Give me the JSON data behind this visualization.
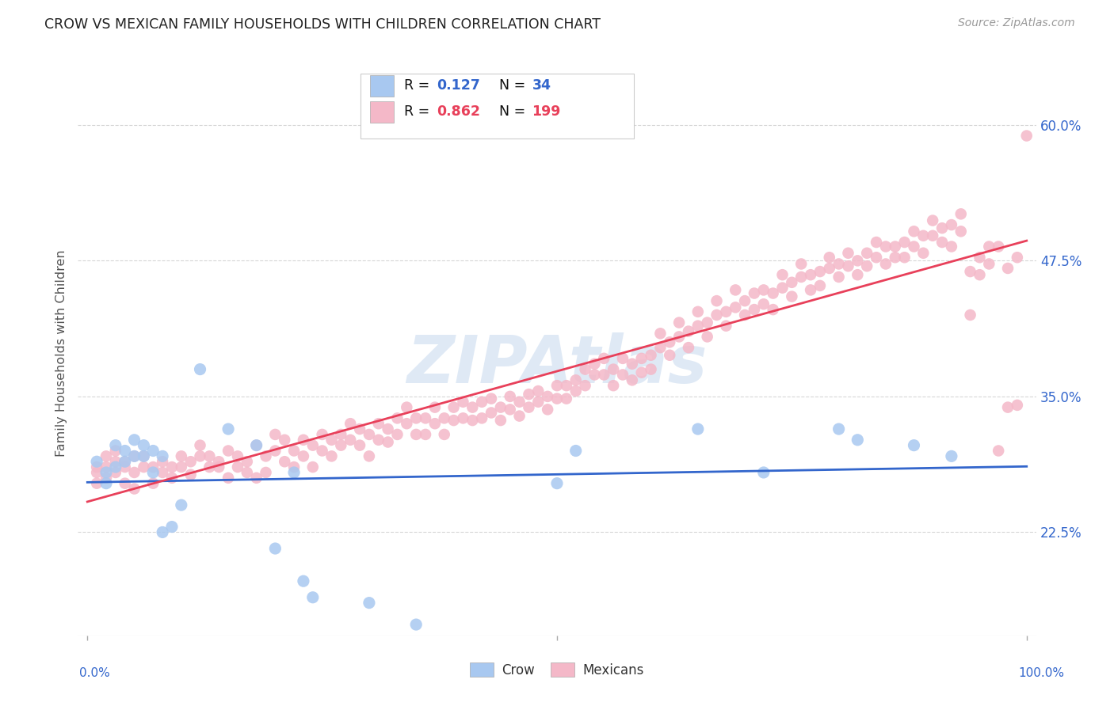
{
  "title": "CROW VS MEXICAN FAMILY HOUSEHOLDS WITH CHILDREN CORRELATION CHART",
  "source": "Source: ZipAtlas.com",
  "ylabel": "Family Households with Children",
  "ytick_labels": [
    "22.5%",
    "35.0%",
    "47.5%",
    "60.0%"
  ],
  "ytick_values": [
    0.225,
    0.35,
    0.475,
    0.6
  ],
  "xlim": [
    -0.01,
    1.01
  ],
  "ylim": [
    0.13,
    0.65
  ],
  "crow_R": "0.127",
  "crow_N": "34",
  "mexicans_R": "0.862",
  "mexicans_N": "199",
  "crow_color": "#a8c8f0",
  "crow_line_color": "#3366cc",
  "mexicans_color": "#f4b8c8",
  "mexicans_line_color": "#e8405a",
  "background_color": "#ffffff",
  "grid_color": "#cccccc",
  "watermark": "ZIPAtlas",
  "legend_box_color": "#dddddd",
  "crow_scatter": [
    [
      0.01,
      0.29
    ],
    [
      0.02,
      0.28
    ],
    [
      0.02,
      0.27
    ],
    [
      0.03,
      0.305
    ],
    [
      0.03,
      0.285
    ],
    [
      0.04,
      0.3
    ],
    [
      0.04,
      0.29
    ],
    [
      0.05,
      0.31
    ],
    [
      0.05,
      0.295
    ],
    [
      0.06,
      0.305
    ],
    [
      0.06,
      0.295
    ],
    [
      0.07,
      0.3
    ],
    [
      0.07,
      0.28
    ],
    [
      0.08,
      0.295
    ],
    [
      0.08,
      0.225
    ],
    [
      0.09,
      0.23
    ],
    [
      0.1,
      0.25
    ],
    [
      0.12,
      0.375
    ],
    [
      0.15,
      0.32
    ],
    [
      0.18,
      0.305
    ],
    [
      0.2,
      0.21
    ],
    [
      0.22,
      0.28
    ],
    [
      0.23,
      0.18
    ],
    [
      0.24,
      0.165
    ],
    [
      0.3,
      0.16
    ],
    [
      0.35,
      0.14
    ],
    [
      0.5,
      0.27
    ],
    [
      0.52,
      0.3
    ],
    [
      0.65,
      0.32
    ],
    [
      0.72,
      0.28
    ],
    [
      0.8,
      0.32
    ],
    [
      0.82,
      0.31
    ],
    [
      0.88,
      0.305
    ],
    [
      0.92,
      0.295
    ]
  ],
  "mexicans_scatter": [
    [
      0.01,
      0.27
    ],
    [
      0.01,
      0.28
    ],
    [
      0.01,
      0.285
    ],
    [
      0.02,
      0.275
    ],
    [
      0.02,
      0.285
    ],
    [
      0.02,
      0.295
    ],
    [
      0.03,
      0.28
    ],
    [
      0.03,
      0.29
    ],
    [
      0.03,
      0.3
    ],
    [
      0.04,
      0.27
    ],
    [
      0.04,
      0.29
    ],
    [
      0.04,
      0.285
    ],
    [
      0.05,
      0.28
    ],
    [
      0.05,
      0.295
    ],
    [
      0.05,
      0.265
    ],
    [
      0.06,
      0.285
    ],
    [
      0.06,
      0.295
    ],
    [
      0.07,
      0.285
    ],
    [
      0.07,
      0.27
    ],
    [
      0.08,
      0.28
    ],
    [
      0.08,
      0.29
    ],
    [
      0.09,
      0.275
    ],
    [
      0.09,
      0.285
    ],
    [
      0.1,
      0.285
    ],
    [
      0.1,
      0.295
    ],
    [
      0.11,
      0.29
    ],
    [
      0.11,
      0.278
    ],
    [
      0.12,
      0.295
    ],
    [
      0.12,
      0.305
    ],
    [
      0.13,
      0.285
    ],
    [
      0.13,
      0.295
    ],
    [
      0.14,
      0.29
    ],
    [
      0.14,
      0.285
    ],
    [
      0.15,
      0.3
    ],
    [
      0.15,
      0.275
    ],
    [
      0.16,
      0.295
    ],
    [
      0.16,
      0.285
    ],
    [
      0.17,
      0.29
    ],
    [
      0.17,
      0.28
    ],
    [
      0.18,
      0.305
    ],
    [
      0.18,
      0.275
    ],
    [
      0.19,
      0.28
    ],
    [
      0.19,
      0.295
    ],
    [
      0.2,
      0.3
    ],
    [
      0.2,
      0.315
    ],
    [
      0.21,
      0.31
    ],
    [
      0.21,
      0.29
    ],
    [
      0.22,
      0.3
    ],
    [
      0.22,
      0.285
    ],
    [
      0.23,
      0.31
    ],
    [
      0.23,
      0.295
    ],
    [
      0.24,
      0.305
    ],
    [
      0.24,
      0.285
    ],
    [
      0.25,
      0.315
    ],
    [
      0.25,
      0.3
    ],
    [
      0.26,
      0.31
    ],
    [
      0.26,
      0.295
    ],
    [
      0.27,
      0.315
    ],
    [
      0.27,
      0.305
    ],
    [
      0.28,
      0.31
    ],
    [
      0.28,
      0.325
    ],
    [
      0.29,
      0.305
    ],
    [
      0.29,
      0.32
    ],
    [
      0.3,
      0.315
    ],
    [
      0.3,
      0.295
    ],
    [
      0.31,
      0.325
    ],
    [
      0.31,
      0.31
    ],
    [
      0.32,
      0.32
    ],
    [
      0.32,
      0.308
    ],
    [
      0.33,
      0.33
    ],
    [
      0.33,
      0.315
    ],
    [
      0.34,
      0.325
    ],
    [
      0.34,
      0.34
    ],
    [
      0.35,
      0.315
    ],
    [
      0.35,
      0.33
    ],
    [
      0.36,
      0.33
    ],
    [
      0.36,
      0.315
    ],
    [
      0.37,
      0.34
    ],
    [
      0.37,
      0.325
    ],
    [
      0.38,
      0.33
    ],
    [
      0.38,
      0.315
    ],
    [
      0.39,
      0.34
    ],
    [
      0.39,
      0.328
    ],
    [
      0.4,
      0.345
    ],
    [
      0.4,
      0.33
    ],
    [
      0.41,
      0.34
    ],
    [
      0.41,
      0.328
    ],
    [
      0.42,
      0.345
    ],
    [
      0.42,
      0.33
    ],
    [
      0.43,
      0.348
    ],
    [
      0.43,
      0.335
    ],
    [
      0.44,
      0.34
    ],
    [
      0.44,
      0.328
    ],
    [
      0.45,
      0.35
    ],
    [
      0.45,
      0.338
    ],
    [
      0.46,
      0.345
    ],
    [
      0.46,
      0.332
    ],
    [
      0.47,
      0.352
    ],
    [
      0.47,
      0.34
    ],
    [
      0.48,
      0.355
    ],
    [
      0.48,
      0.345
    ],
    [
      0.49,
      0.35
    ],
    [
      0.49,
      0.338
    ],
    [
      0.5,
      0.36
    ],
    [
      0.5,
      0.348
    ],
    [
      0.51,
      0.36
    ],
    [
      0.51,
      0.348
    ],
    [
      0.52,
      0.365
    ],
    [
      0.52,
      0.355
    ],
    [
      0.53,
      0.36
    ],
    [
      0.53,
      0.375
    ],
    [
      0.54,
      0.37
    ],
    [
      0.54,
      0.38
    ],
    [
      0.55,
      0.37
    ],
    [
      0.55,
      0.385
    ],
    [
      0.56,
      0.375
    ],
    [
      0.56,
      0.36
    ],
    [
      0.57,
      0.385
    ],
    [
      0.57,
      0.37
    ],
    [
      0.58,
      0.38
    ],
    [
      0.58,
      0.365
    ],
    [
      0.59,
      0.385
    ],
    [
      0.59,
      0.372
    ],
    [
      0.6,
      0.388
    ],
    [
      0.6,
      0.375
    ],
    [
      0.61,
      0.395
    ],
    [
      0.61,
      0.408
    ],
    [
      0.62,
      0.4
    ],
    [
      0.62,
      0.388
    ],
    [
      0.63,
      0.405
    ],
    [
      0.63,
      0.418
    ],
    [
      0.64,
      0.41
    ],
    [
      0.64,
      0.395
    ],
    [
      0.65,
      0.415
    ],
    [
      0.65,
      0.428
    ],
    [
      0.66,
      0.418
    ],
    [
      0.66,
      0.405
    ],
    [
      0.67,
      0.425
    ],
    [
      0.67,
      0.438
    ],
    [
      0.68,
      0.428
    ],
    [
      0.68,
      0.415
    ],
    [
      0.69,
      0.432
    ],
    [
      0.69,
      0.448
    ],
    [
      0.7,
      0.438
    ],
    [
      0.7,
      0.425
    ],
    [
      0.71,
      0.445
    ],
    [
      0.71,
      0.43
    ],
    [
      0.72,
      0.435
    ],
    [
      0.72,
      0.448
    ],
    [
      0.73,
      0.445
    ],
    [
      0.73,
      0.43
    ],
    [
      0.74,
      0.45
    ],
    [
      0.74,
      0.462
    ],
    [
      0.75,
      0.455
    ],
    [
      0.75,
      0.442
    ],
    [
      0.76,
      0.46
    ],
    [
      0.76,
      0.472
    ],
    [
      0.77,
      0.462
    ],
    [
      0.77,
      0.448
    ],
    [
      0.78,
      0.465
    ],
    [
      0.78,
      0.452
    ],
    [
      0.79,
      0.468
    ],
    [
      0.79,
      0.478
    ],
    [
      0.8,
      0.472
    ],
    [
      0.8,
      0.46
    ],
    [
      0.81,
      0.47
    ],
    [
      0.81,
      0.482
    ],
    [
      0.82,
      0.475
    ],
    [
      0.82,
      0.462
    ],
    [
      0.83,
      0.482
    ],
    [
      0.83,
      0.47
    ],
    [
      0.84,
      0.478
    ],
    [
      0.84,
      0.492
    ],
    [
      0.85,
      0.488
    ],
    [
      0.85,
      0.472
    ],
    [
      0.86,
      0.488
    ],
    [
      0.86,
      0.478
    ],
    [
      0.87,
      0.492
    ],
    [
      0.87,
      0.478
    ],
    [
      0.88,
      0.488
    ],
    [
      0.88,
      0.502
    ],
    [
      0.89,
      0.498
    ],
    [
      0.89,
      0.482
    ],
    [
      0.9,
      0.498
    ],
    [
      0.9,
      0.512
    ],
    [
      0.91,
      0.505
    ],
    [
      0.91,
      0.492
    ],
    [
      0.92,
      0.508
    ],
    [
      0.92,
      0.488
    ],
    [
      0.93,
      0.502
    ],
    [
      0.93,
      0.518
    ],
    [
      0.94,
      0.425
    ],
    [
      0.94,
      0.465
    ],
    [
      0.95,
      0.478
    ],
    [
      0.95,
      0.462
    ],
    [
      0.96,
      0.472
    ],
    [
      0.96,
      0.488
    ],
    [
      0.97,
      0.3
    ],
    [
      0.97,
      0.488
    ],
    [
      0.98,
      0.34
    ],
    [
      0.98,
      0.468
    ],
    [
      0.99,
      0.342
    ],
    [
      0.99,
      0.478
    ],
    [
      1.0,
      0.59
    ]
  ]
}
